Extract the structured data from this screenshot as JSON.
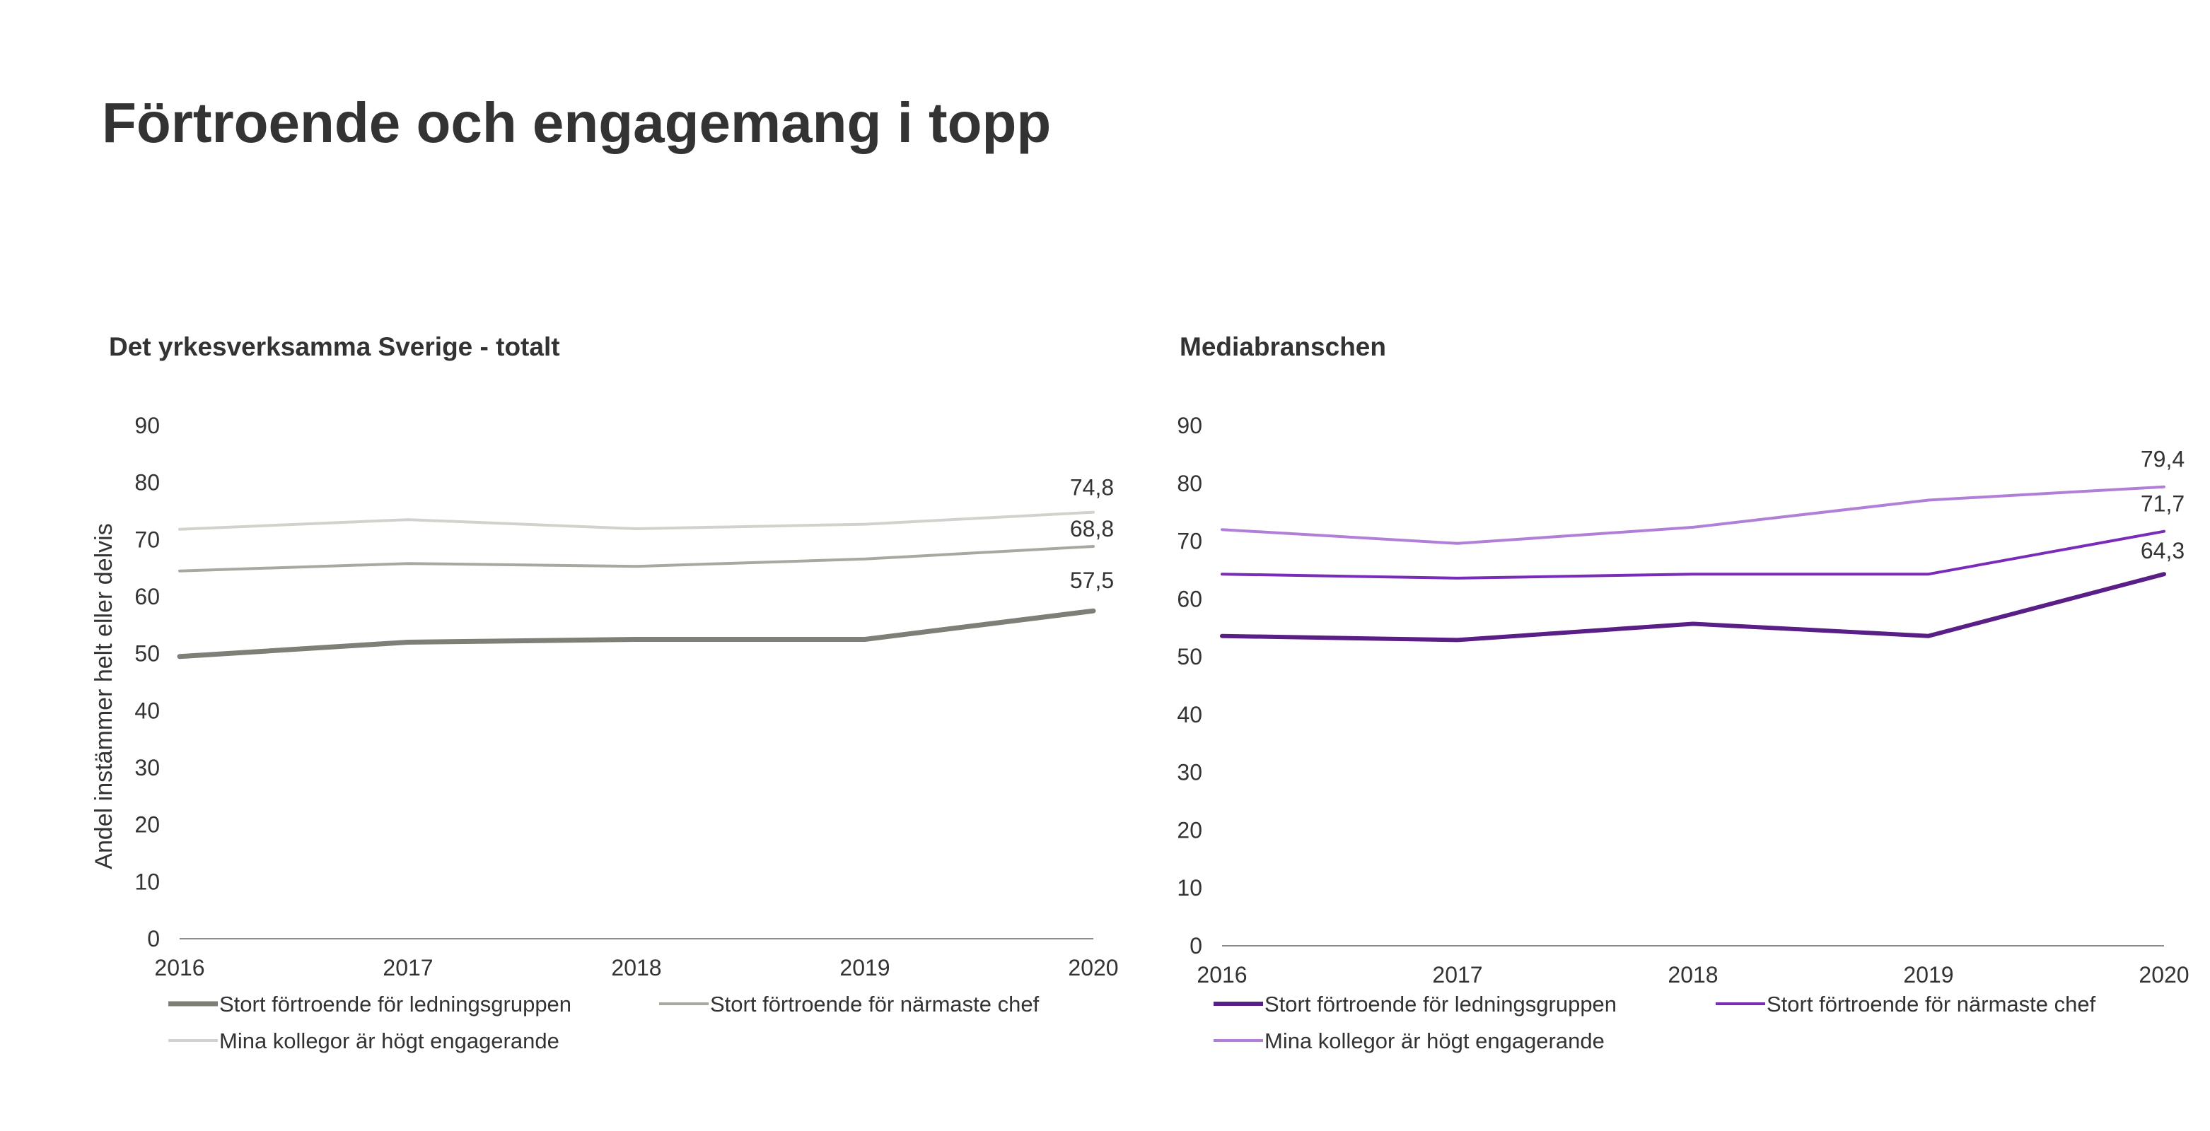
{
  "page": {
    "title": "Förtroende och engagemang i topp"
  },
  "chart_data": [
    {
      "type": "line",
      "title": "Det yrkesverksamma Sverige - totalt",
      "xlabel": "",
      "ylabel": "Andel instämmer helt eller delvis",
      "x": [
        "2016",
        "2017",
        "2018",
        "2019",
        "2020"
      ],
      "ylim": [
        0,
        90
      ],
      "yticks": [
        0,
        10,
        20,
        30,
        40,
        50,
        60,
        70,
        80,
        90
      ],
      "grid": false,
      "legend_position": "bottom",
      "series": [
        {
          "name": "Stort förtroende för ledningsgruppen",
          "values": [
            49.5,
            52.0,
            52.5,
            52.5,
            57.5
          ],
          "color": "#7f7f78",
          "end_label": "57,5"
        },
        {
          "name": "Stort förtroende för närmaste chef",
          "values": [
            64.5,
            65.8,
            65.3,
            66.6,
            68.8
          ],
          "color": "#a8a8a1",
          "end_label": "68,8"
        },
        {
          "name": "Mina kollegor är högt engagerande",
          "values": [
            71.8,
            73.5,
            71.9,
            72.7,
            74.8
          ],
          "color": "#d2d2cc",
          "end_label": "74,8"
        }
      ]
    },
    {
      "type": "line",
      "title": "Mediabranschen",
      "xlabel": "",
      "ylabel": "",
      "x": [
        "2016",
        "2017",
        "2018",
        "2019",
        "2020"
      ],
      "ylim": [
        0,
        90
      ],
      "yticks": [
        0,
        10,
        20,
        30,
        40,
        50,
        60,
        70,
        80,
        90
      ],
      "grid": false,
      "legend_position": "bottom",
      "series": [
        {
          "name": "Stort förtroende för ledningsgruppen",
          "values": [
            53.6,
            52.9,
            55.7,
            53.6,
            64.3
          ],
          "color": "#5a1e87",
          "end_label": "64,3"
        },
        {
          "name": "Stort förtroende för närmaste chef",
          "values": [
            64.3,
            63.6,
            64.3,
            64.3,
            71.7
          ],
          "color": "#7a2bb8",
          "end_label": "71,7"
        },
        {
          "name": "Mina kollegor är högt engagerande",
          "values": [
            72.0,
            69.6,
            72.4,
            77.1,
            79.4
          ],
          "color": "#b07fd8",
          "end_label": "79,4"
        }
      ]
    }
  ]
}
